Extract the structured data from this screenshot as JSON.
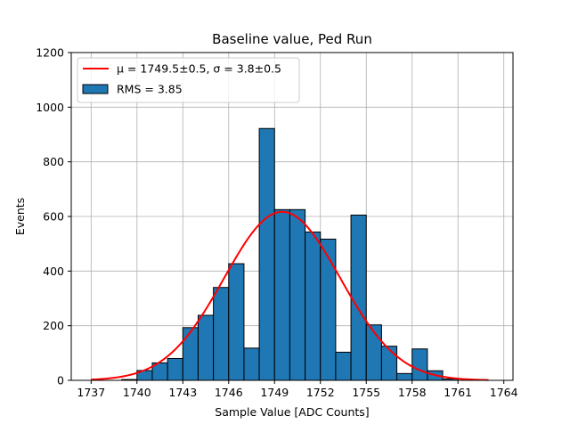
{
  "chart_data": {
    "type": "bar",
    "title": "Baseline value, Ped Run",
    "xlabel": "Sample Value [ADC Counts]",
    "ylabel": "Events",
    "xlim": [
      1735.7,
      1764.6
    ],
    "ylim": [
      0,
      1200
    ],
    "x_ticks": [
      1737,
      1740,
      1743,
      1746,
      1749,
      1752,
      1755,
      1758,
      1761,
      1764
    ],
    "y_ticks": [
      0,
      200,
      400,
      600,
      800,
      1000,
      1200
    ],
    "grid": true,
    "legend_position": "top-left",
    "histogram": {
      "name": "RMS = 3.85",
      "color": "#1f77b4",
      "edge_color": "#000000",
      "bin_width": 1,
      "bin_starts": [
        1739,
        1740,
        1741,
        1742,
        1743,
        1744,
        1745,
        1746,
        1747,
        1748,
        1749,
        1750,
        1751,
        1752,
        1753,
        1754,
        1755,
        1756,
        1757,
        1758,
        1759,
        1760
      ],
      "values": [
        3,
        36,
        64,
        80,
        193,
        238,
        340,
        427,
        118,
        922,
        625,
        625,
        543,
        517,
        103,
        605,
        203,
        125,
        25,
        115,
        35,
        5
      ]
    },
    "fit": {
      "name_math": "μ = 1749.5±0.5, σ = 3.8±0.5",
      "color": "#ff0000",
      "mu": 1749.5,
      "sigma": 3.8,
      "amplitude": 617,
      "x_range": [
        1737,
        1763
      ]
    }
  }
}
